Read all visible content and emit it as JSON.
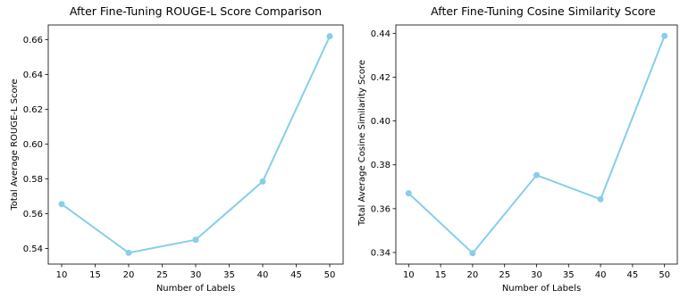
{
  "chart_data": [
    {
      "type": "line",
      "title": "After Fine-Tuning ROUGE-L Score Comparison",
      "xlabel": "Number of Labels",
      "ylabel": "Total Average ROUGE-L Score",
      "x": [
        10,
        20,
        30,
        40,
        50
      ],
      "series": [
        {
          "values": [
            0.5655,
            0.5375,
            0.545,
            0.5785,
            0.662
          ]
        }
      ],
      "xlim": [
        8,
        52
      ],
      "ylim": [
        0.531,
        0.6685
      ],
      "xticks": [
        10,
        15,
        20,
        25,
        30,
        35,
        40,
        45,
        50
      ],
      "xtick_labels": [
        "10",
        "15",
        "20",
        "25",
        "30",
        "35",
        "40",
        "45",
        "50"
      ],
      "yticks": [
        0.54,
        0.56,
        0.58,
        0.6,
        0.62,
        0.64,
        0.66
      ],
      "ytick_labels": [
        "0.54",
        "0.56",
        "0.58",
        "0.60",
        "0.62",
        "0.64",
        "0.66"
      ],
      "grid": false,
      "color": "#87ceeb"
    },
    {
      "type": "line",
      "title": "After Fine-Tuning Cosine Similarity Score",
      "xlabel": "Number of Labels",
      "ylabel": "Total Average Cosine Similarity Score",
      "x": [
        10,
        20,
        30,
        40,
        50
      ],
      "series": [
        {
          "values": [
            0.367,
            0.3397,
            0.3753,
            0.3643,
            0.4388
          ]
        }
      ],
      "xlim": [
        8,
        52
      ],
      "ylim": [
        0.3347,
        0.4438
      ],
      "xticks": [
        10,
        15,
        20,
        25,
        30,
        35,
        40,
        45,
        50
      ],
      "xtick_labels": [
        "10",
        "15",
        "20",
        "25",
        "30",
        "35",
        "40",
        "45",
        "50"
      ],
      "yticks": [
        0.34,
        0.36,
        0.38,
        0.4,
        0.42,
        0.44
      ],
      "ytick_labels": [
        "0.34",
        "0.36",
        "0.38",
        "0.40",
        "0.42",
        "0.44"
      ],
      "grid": false,
      "color": "#87ceeb"
    }
  ]
}
